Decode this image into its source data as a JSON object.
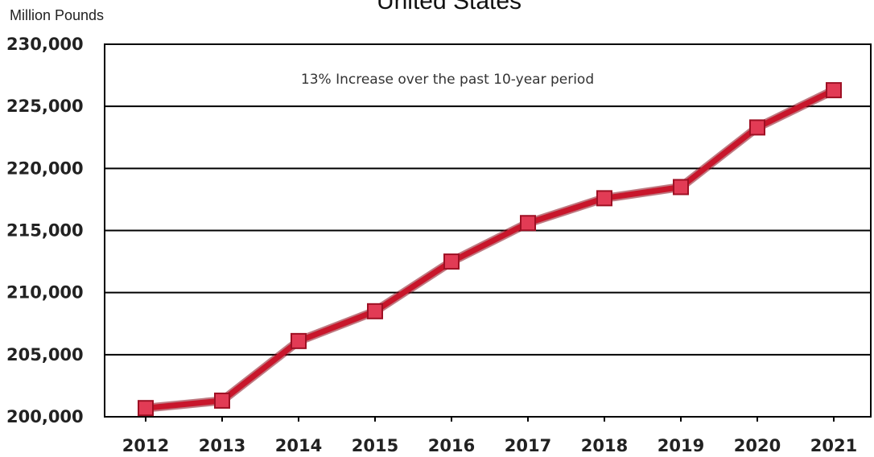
{
  "chart_data": {
    "type": "line",
    "title": "United States",
    "ylabel": "Million Pounds",
    "xlabel": "",
    "categories": [
      "2012",
      "2013",
      "2014",
      "2015",
      "2016",
      "2017",
      "2018",
      "2019",
      "2020",
      "2021"
    ],
    "series": [
      {
        "values": [
          200700,
          201300,
          206100,
          208500,
          212500,
          215600,
          217600,
          218500,
          223300,
          226300
        ]
      }
    ],
    "ylim": [
      200000,
      230000
    ],
    "yticks": [
      200000,
      205000,
      210000,
      215000,
      220000,
      225000,
      230000
    ],
    "ytick_labels": [
      "200,000",
      "205,000",
      "210,000",
      "215,000",
      "220,000",
      "225,000",
      "230,000"
    ],
    "annotation": "13% Increase over the past 10-year period",
    "grid": true,
    "legend": "none",
    "line_color": "#c8162b",
    "marker_color": "#e23b55"
  }
}
